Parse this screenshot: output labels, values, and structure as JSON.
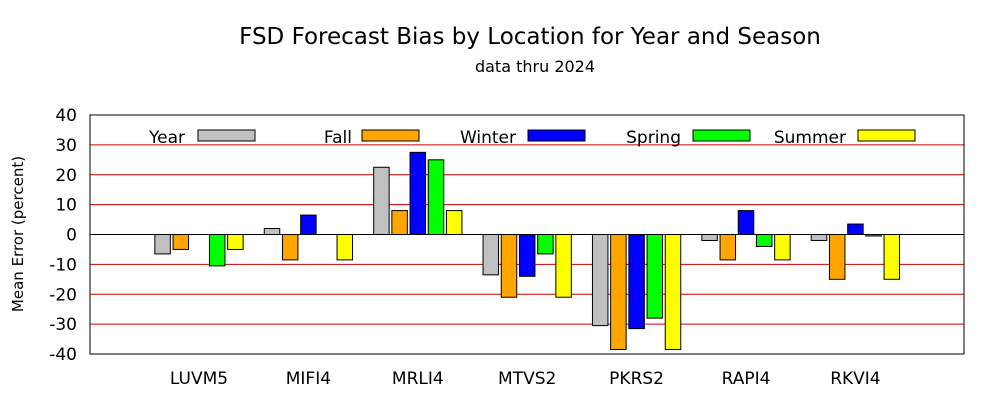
{
  "chart_data": {
    "type": "bar",
    "title": "FSD Forecast Bias by Location for Year and Season",
    "subtitle": "data thru 2024",
    "xlabel": "",
    "ylabel": "Mean Error (percent)",
    "ylim": [
      -40,
      40
    ],
    "yticks": [
      40,
      30,
      20,
      10,
      0,
      -10,
      -20,
      -30,
      -40
    ],
    "ytick_labels": [
      "40",
      "30",
      "20",
      "10",
      "0",
      "-10",
      "-20",
      "-30",
      "-40"
    ],
    "grid": "horizontal",
    "grid_color": "#cc0000",
    "legend_position": "top",
    "categories": [
      "LUVM5",
      "MIFI4",
      "MRLI4",
      "MTVS2",
      "PKRS2",
      "RAPI4",
      "RKVI4"
    ],
    "series": [
      {
        "name": "Year",
        "color": "#c0c0c0",
        "values": [
          -6.5,
          2,
          22.5,
          -13.5,
          -30.5,
          -2,
          -2
        ]
      },
      {
        "name": "Fall",
        "color": "#ffa500",
        "values": [
          -5,
          -8.5,
          8,
          -21,
          -38.5,
          -8.5,
          -15
        ]
      },
      {
        "name": "Winter",
        "color": "#0000ff",
        "values": [
          0,
          6.5,
          27.5,
          -14,
          -31.5,
          8,
          3.5
        ]
      },
      {
        "name": "Spring",
        "color": "#00ff00",
        "values": [
          -10.5,
          0,
          25,
          -6.5,
          -28,
          -4,
          -0.5
        ]
      },
      {
        "name": "Summer",
        "color": "#ffff00",
        "values": [
          -5,
          -8.5,
          8,
          -21,
          -38.5,
          -8.5,
          -15
        ]
      }
    ]
  }
}
